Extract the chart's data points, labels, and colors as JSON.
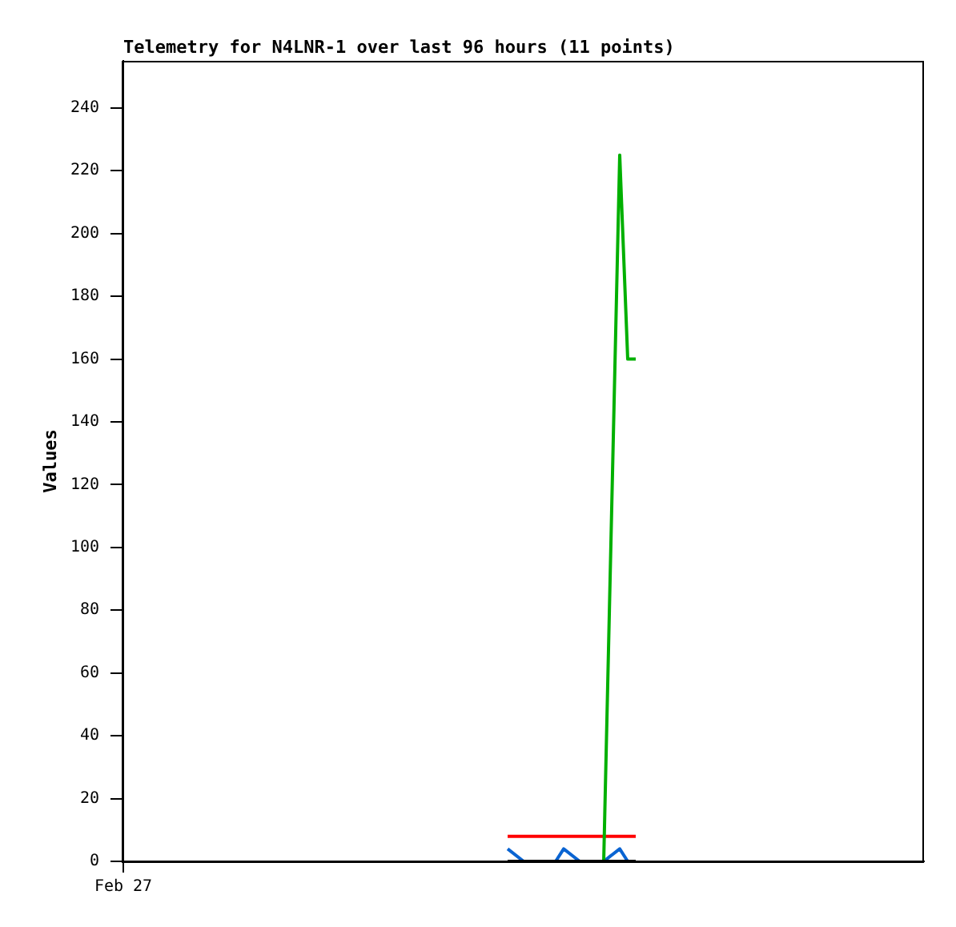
{
  "chart_data": {
    "type": "line",
    "title": "Telemetry for N4LNR-1 over last 96 hours (11 points)",
    "ylabel": "Values",
    "categories": [
      "Feb 27",
      null,
      null,
      null,
      null,
      null,
      null,
      null,
      null,
      null,
      null,
      null,
      null,
      null,
      null,
      null,
      null,
      null,
      null,
      null,
      null,
      null,
      null,
      null,
      null,
      null,
      null,
      null,
      null,
      null,
      null,
      null,
      null,
      null,
      null,
      null,
      null,
      null,
      null,
      null,
      null,
      null,
      null,
      null,
      null,
      null,
      null,
      null,
      null,
      null,
      null,
      null,
      null,
      null,
      null,
      null,
      null,
      null,
      null,
      null,
      null,
      null,
      null,
      null,
      null,
      null,
      null,
      null,
      null,
      null,
      null,
      null,
      null,
      null,
      null,
      null,
      null,
      null,
      null,
      null,
      null,
      null,
      null,
      null,
      null,
      null,
      null,
      null,
      null,
      null,
      null,
      null,
      null,
      null,
      null,
      null,
      null,
      null,
      null,
      null,
      null
    ],
    "series": [
      {
        "color": "#ff0000",
        "values": [
          null,
          null,
          null,
          null,
          null,
          null,
          null,
          null,
          null,
          null,
          null,
          null,
          null,
          null,
          null,
          null,
          null,
          null,
          null,
          null,
          null,
          null,
          null,
          null,
          null,
          null,
          null,
          null,
          null,
          null,
          null,
          null,
          null,
          null,
          null,
          null,
          null,
          null,
          null,
          null,
          null,
          null,
          null,
          null,
          null,
          null,
          null,
          null,
          8,
          null,
          8,
          null,
          8,
          null,
          8,
          8,
          null,
          8,
          8,
          null,
          8,
          null,
          8,
          8,
          8,
          null,
          null,
          null,
          null,
          null,
          null,
          null,
          null,
          null,
          null,
          null,
          null,
          null,
          null,
          null,
          null,
          null,
          null,
          null,
          null,
          null,
          null,
          null,
          null,
          null,
          null,
          null,
          null,
          null,
          null,
          null,
          null,
          null,
          null,
          null,
          null
        ]
      },
      {
        "color": "#0a64d2",
        "values": [
          null,
          null,
          null,
          null,
          null,
          null,
          null,
          null,
          null,
          null,
          null,
          null,
          null,
          null,
          null,
          null,
          null,
          null,
          null,
          null,
          null,
          null,
          null,
          null,
          null,
          null,
          null,
          null,
          null,
          null,
          null,
          null,
          null,
          null,
          null,
          null,
          null,
          null,
          null,
          null,
          null,
          null,
          null,
          null,
          null,
          null,
          null,
          null,
          4,
          null,
          0,
          null,
          null,
          null,
          0,
          4,
          null,
          0,
          null,
          null,
          0,
          null,
          4,
          0,
          0,
          null,
          null,
          null,
          null,
          null,
          null,
          null,
          null,
          null,
          null,
          null,
          null,
          null,
          null,
          null,
          null,
          null,
          null,
          null,
          null,
          null,
          null,
          null,
          null,
          null,
          null,
          null,
          null,
          null,
          null,
          null,
          null,
          null,
          null,
          null,
          null
        ]
      },
      {
        "color": "#00b000",
        "values": [
          null,
          null,
          null,
          null,
          null,
          null,
          null,
          null,
          null,
          null,
          null,
          null,
          null,
          null,
          null,
          null,
          null,
          null,
          null,
          null,
          null,
          null,
          null,
          null,
          null,
          null,
          null,
          null,
          null,
          null,
          null,
          null,
          null,
          null,
          null,
          null,
          null,
          null,
          null,
          null,
          null,
          null,
          null,
          null,
          null,
          null,
          null,
          null,
          null,
          null,
          null,
          null,
          null,
          null,
          null,
          null,
          null,
          null,
          null,
          null,
          0,
          null,
          225,
          160,
          160,
          null,
          null,
          null,
          null,
          null,
          null,
          null,
          null,
          null,
          null,
          null,
          null,
          null,
          null,
          null,
          null,
          null,
          null,
          null,
          null,
          null,
          null,
          null,
          null,
          null,
          null,
          null,
          null,
          null,
          null,
          null,
          null,
          null,
          null,
          null,
          null
        ]
      },
      {
        "color": "#000000",
        "values": [
          null,
          null,
          null,
          null,
          null,
          null,
          null,
          null,
          null,
          null,
          null,
          null,
          null,
          null,
          null,
          null,
          null,
          null,
          null,
          null,
          null,
          null,
          null,
          null,
          null,
          null,
          null,
          null,
          null,
          null,
          null,
          null,
          null,
          null,
          null,
          null,
          null,
          null,
          null,
          null,
          null,
          null,
          null,
          null,
          null,
          null,
          null,
          null,
          0,
          null,
          0,
          null,
          0,
          null,
          0,
          0,
          null,
          0,
          0,
          null,
          0,
          null,
          0,
          0,
          0,
          null,
          null,
          null,
          null,
          null,
          null,
          null,
          null,
          null,
          null,
          null,
          null,
          null,
          null,
          null,
          null,
          null,
          null,
          null,
          null,
          null,
          null,
          null,
          null,
          null,
          null,
          null,
          null,
          null,
          null,
          null,
          null,
          null,
          null,
          null,
          null
        ]
      }
    ],
    "ylim": [
      0,
      255
    ],
    "yticks": [
      0,
      20,
      40,
      60,
      80,
      100,
      120,
      140,
      160,
      180,
      200,
      220,
      240
    ]
  }
}
